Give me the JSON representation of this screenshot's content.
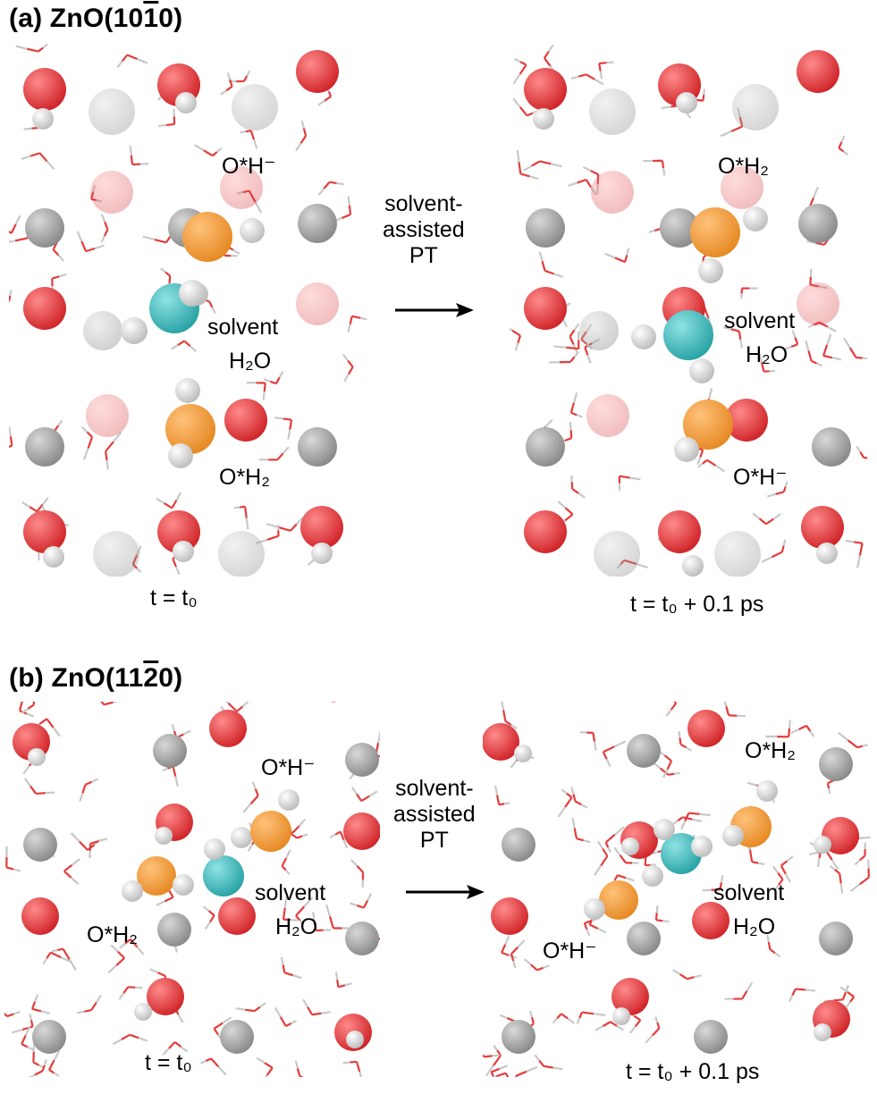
{
  "panel_a": {
    "title_prefix": "(a) ZnO(10",
    "title_bar": "1",
    "title_suffix": "0)",
    "left": {
      "label_oh": "O*H⁻",
      "label_solvent": "solvent",
      "label_h2o": "H₂O",
      "label_oh2": "O*H₂",
      "time": "t = t₀"
    },
    "right": {
      "label_oh2": "O*H₂",
      "label_solvent": "solvent",
      "label_h2o": "H₂O",
      "label_oh": "O*H⁻",
      "time": "t = t₀ + 0.1 ps"
    },
    "arrow_text": [
      "solvent-",
      "assisted",
      "PT"
    ]
  },
  "panel_b": {
    "title_prefix": "(b) ZnO(11",
    "title_bar": "2",
    "title_suffix": "0)",
    "left": {
      "label_oh": "O*H⁻",
      "label_solvent": "solvent",
      "label_h2o": "H₂O",
      "label_oh2": "O*H₂",
      "time": "t = t₀"
    },
    "right": {
      "label_oh2": "O*H₂",
      "label_solvent": "solvent",
      "label_h2o": "H₂O",
      "label_oh": "O*H⁻",
      "time": "t = t₀ + 0.1 ps"
    },
    "arrow_text": [
      "solvent-",
      "assisted",
      "PT"
    ]
  },
  "colors": {
    "oxygen": "#d0262a",
    "zinc": "#8a8a8a",
    "hydrogen": "#eeeeee",
    "adsorbed_o": "#e68a25",
    "solvent_o": "#2aa3a6",
    "bond_red": "#e43b3b",
    "bond_grey": "#c8c8c8"
  }
}
